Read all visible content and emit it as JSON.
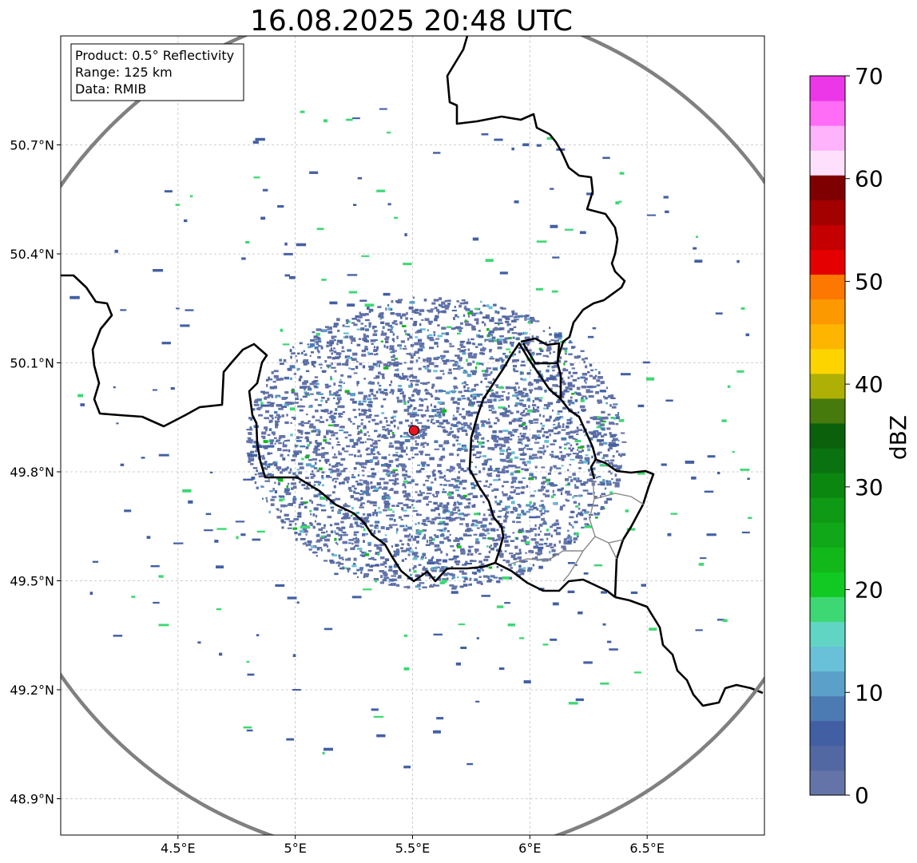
{
  "title": "16.08.2025 20:48 UTC",
  "info_box": {
    "product": "Product: 0.5° Reflectivity",
    "range": "Range: 125 km",
    "data": "Data: RMIB"
  },
  "map": {
    "lon_range": [
      4.0,
      7.0
    ],
    "lat_range": [
      48.8,
      51.0
    ],
    "x_ticks": [
      {
        "value": 4.5,
        "label": "4.5°E"
      },
      {
        "value": 5.0,
        "label": "5°E"
      },
      {
        "value": 5.5,
        "label": "5.5°E"
      },
      {
        "value": 6.0,
        "label": "6°E"
      },
      {
        "value": 6.5,
        "label": "6.5°E"
      }
    ],
    "y_ticks": [
      {
        "value": 50.7,
        "label": "50.7°N"
      },
      {
        "value": 50.4,
        "label": "50.4°N"
      },
      {
        "value": 50.1,
        "label": "50.1°N"
      },
      {
        "value": 49.8,
        "label": "49.8°N"
      },
      {
        "value": 49.5,
        "label": "49.5°N"
      },
      {
        "value": 49.2,
        "label": "49.2°N"
      },
      {
        "value": 48.9,
        "label": "48.9°N"
      }
    ],
    "grid": true,
    "radar_site": {
      "lon": 5.506,
      "lat": 49.914
    },
    "range_ring_km": 125,
    "ring_color": "#808080",
    "site_marker_color": "#e8141e"
  },
  "colorbar": {
    "label": "dBZ",
    "min": 0,
    "max": 70,
    "tick_labels": [
      "0",
      "10",
      "20",
      "30",
      "40",
      "50",
      "60",
      "70"
    ],
    "tick_values": [
      0,
      10,
      20,
      30,
      40,
      50,
      60,
      70
    ],
    "bins": [
      "#6473a8",
      "#5268a2",
      "#435fa4",
      "#4c7ab2",
      "#5aa0c9",
      "#68c1d8",
      "#61d5c4",
      "#3dd873",
      "#12c822",
      "#12b81a",
      "#10a818",
      "#0e9a14",
      "#0b8710",
      "#0a7210",
      "#0b600c",
      "#467a0c",
      "#aeb005",
      "#fed400",
      "#fdb500",
      "#fd9900",
      "#fd7800",
      "#e40000",
      "#c40000",
      "#a30000",
      "#7e0000",
      "#ffe0fc",
      "#feb3fb",
      "#ff6cf6",
      "#eb37e7"
    ]
  }
}
